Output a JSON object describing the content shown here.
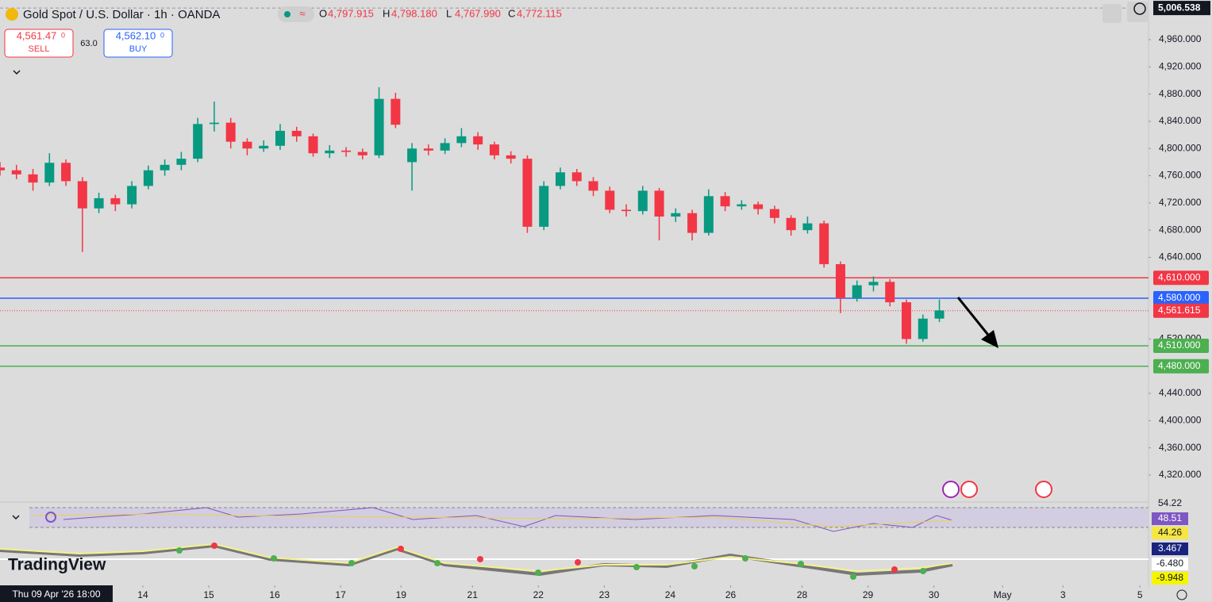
{
  "header": {
    "symbol": "Gold Spot / U.S. Dollar · 1h · OANDA",
    "ohlc": [
      {
        "label": "O",
        "value": "4,797.915"
      },
      {
        "label": "H",
        "value": "4,798.180"
      },
      {
        "label": "L",
        "value": "4,767.990"
      },
      {
        "label": "C",
        "value": "4,772.115"
      }
    ]
  },
  "trade": {
    "sell_price": "4,561.47",
    "sell_price_sup": "0",
    "sell": "SELL",
    "spread": "63.0",
    "buy_price": "4,562.10",
    "buy_price_sup": "0",
    "buy": "BUY"
  },
  "chart_data": {
    "type": "candlestick",
    "x": [
      -52,
      -46,
      -40,
      -34,
      -28,
      -22,
      -16,
      -10,
      -4,
      2,
      8,
      14,
      20,
      26,
      32,
      38,
      44,
      50,
      56,
      62,
      68,
      74,
      80,
      86,
      92,
      98,
      104,
      110,
      116,
      122,
      128,
      134,
      140,
      146,
      152,
      158,
      164,
      170,
      176,
      182,
      188,
      194,
      200,
      206,
      212,
      218,
      224,
      230,
      236,
      242,
      248,
      254,
      260,
      266,
      272,
      278,
      284,
      290
    ],
    "open": [
      4772,
      4768,
      4762,
      4750,
      4779,
      4752,
      4712,
      4727,
      4718,
      4745,
      4768,
      4776,
      4785,
      4836,
      4838,
      4810,
      4800,
      4804,
      4826,
      4818,
      4793,
      4797,
      4795,
      4790,
      4873,
      4780,
      4800,
      4797,
      4808,
      4818,
      4806,
      4790,
      4785,
      4685,
      4745,
      4765,
      4752,
      4738,
      4710,
      4708,
      4738,
      4700,
      4705,
      4676,
      4730,
      4715,
      4718,
      4711,
      4698,
      4680,
      4690,
      4630,
      4580,
      4599,
      4604,
      4574,
      4520,
      4550
    ],
    "high": [
      4780,
      4776,
      4770,
      4793,
      4784,
      4758,
      4735,
      4732,
      4752,
      4775,
      4784,
      4795,
      4845,
      4869,
      4845,
      4815,
      4812,
      4836,
      4832,
      4822,
      4805,
      4802,
      4800,
      4890,
      4882,
      4808,
      4806,
      4815,
      4830,
      4824,
      4810,
      4796,
      4790,
      4752,
      4772,
      4770,
      4758,
      4744,
      4718,
      4745,
      4742,
      4712,
      4710,
      4740,
      4736,
      4724,
      4722,
      4716,
      4702,
      4700,
      4694,
      4634,
      4606,
      4612,
      4608,
      4578,
      4556,
      4578
    ],
    "low": [
      4760,
      4755,
      4738,
      4745,
      4745,
      4648,
      4705,
      4708,
      4712,
      4740,
      4760,
      4768,
      4780,
      4825,
      4800,
      4790,
      4795,
      4798,
      4810,
      4788,
      4786,
      4788,
      4784,
      4786,
      4830,
      4738,
      4790,
      4792,
      4802,
      4798,
      4784,
      4778,
      4676,
      4680,
      4740,
      4745,
      4730,
      4705,
      4700,
      4703,
      4665,
      4692,
      4665,
      4672,
      4708,
      4710,
      4703,
      4690,
      4672,
      4675,
      4625,
      4558,
      4575,
      4590,
      4568,
      4513,
      4516,
      4545
    ],
    "close": [
      4768,
      4762,
      4750,
      4779,
      4752,
      4712,
      4727,
      4718,
      4745,
      4768,
      4776,
      4785,
      4836,
      4838,
      4810,
      4800,
      4804,
      4826,
      4818,
      4793,
      4797,
      4795,
      4790,
      4873,
      4835,
      4800,
      4797,
      4808,
      4818,
      4806,
      4790,
      4785,
      4685,
      4745,
      4765,
      4752,
      4738,
      4710,
      4708,
      4738,
      4700,
      4705,
      4676,
      4730,
      4715,
      4718,
      4711,
      4698,
      4680,
      4690,
      4630,
      4580,
      4599,
      4604,
      4574,
      4520,
      4550,
      4562
    ],
    "up_color": "#089981",
    "down_color": "#f23645",
    "ylim": [
      4281.5,
      5018.3
    ],
    "yticks": [
      {
        "value": 4320,
        "label": "4,320.000"
      },
      {
        "value": 4360,
        "label": "4,360.000"
      },
      {
        "value": 4400,
        "label": "4,400.000"
      },
      {
        "value": 4440,
        "label": "4,440.000"
      },
      {
        "value": 4520,
        "label": "4,520.000"
      },
      {
        "value": 4640,
        "label": "4,640.000"
      },
      {
        "value": 4680,
        "label": "4,680.000"
      },
      {
        "value": 4720,
        "label": "4,720.000"
      },
      {
        "value": 4760,
        "label": "4,760.000"
      },
      {
        "value": 4800,
        "label": "4,800.000"
      },
      {
        "value": 4840,
        "label": "4,840.000"
      },
      {
        "value": 4880,
        "label": "4,880.000"
      },
      {
        "value": 4920,
        "label": "4,920.000"
      },
      {
        "value": 4960,
        "label": "4,960.000"
      }
    ],
    "xlim": [
      -52,
      367
    ],
    "xticks": [
      {
        "value": 0,
        "label": "14"
      },
      {
        "value": 24,
        "label": "15"
      },
      {
        "value": 48,
        "label": "16"
      },
      {
        "value": 72,
        "label": "17"
      },
      {
        "value": 94,
        "label": "19"
      },
      {
        "value": 120,
        "label": "21"
      },
      {
        "value": 144,
        "label": "22"
      },
      {
        "value": 168,
        "label": "23"
      },
      {
        "value": 192,
        "label": "24"
      },
      {
        "value": 214,
        "label": "26"
      },
      {
        "value": 240,
        "label": "28"
      },
      {
        "value": 264,
        "label": "29"
      },
      {
        "value": 288,
        "label": "30"
      },
      {
        "value": 313,
        "label": "May"
      },
      {
        "value": 335,
        "label": "3"
      },
      {
        "value": 363,
        "label": "5"
      }
    ],
    "cursor_label": "Thu 09 Apr '26 18:00",
    "levels": [
      {
        "value": 4610,
        "label": "4,610.000",
        "color": "#f23645"
      },
      {
        "value": 4580,
        "label": "4,580.000",
        "color": "#2962ff"
      },
      {
        "value": 4510,
        "label": "4,510.000",
        "color": "#4caf50"
      },
      {
        "value": 4480,
        "label": "4,480.000",
        "color": "#4caf50"
      }
    ],
    "last_price": {
      "value": 4561.615,
      "label": "4,561.615",
      "color": "#f23645"
    },
    "top_label": {
      "value": 5006.538,
      "label": "5,006.538"
    }
  },
  "indicators": {
    "rsi_labels": [
      "54.22",
      "48.51",
      "44.26"
    ],
    "macd_labels": [
      "3.467",
      "-6.480",
      "-9.948"
    ]
  },
  "logo": "TradingView"
}
